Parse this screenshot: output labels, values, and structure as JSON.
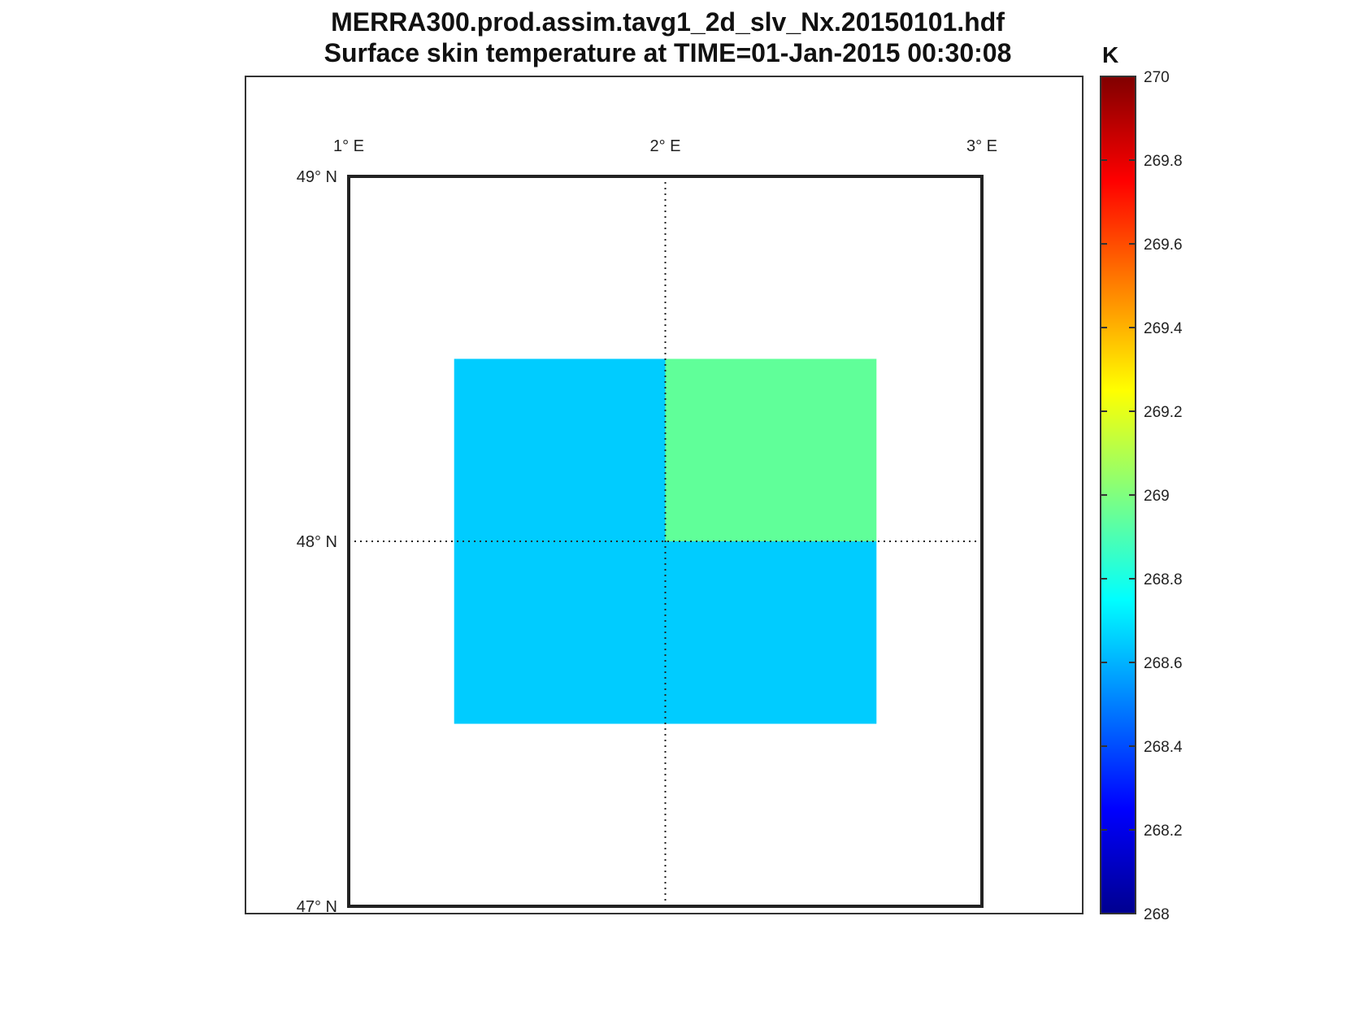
{
  "figure": {
    "title_line1": "MERRA300.prod.assim.tavg1_2d_slv_Nx.20150101.hdf",
    "title_line2": "Surface skin temperature at TIME=01-Jan-2015 00:30:08"
  },
  "map": {
    "lon_labels": [
      "1° E",
      "2° E",
      "3° E"
    ],
    "lat_labels": [
      "49° N",
      "48° N",
      "47° N"
    ],
    "lon_range": [
      1,
      3
    ],
    "lat_range": [
      47,
      49
    ],
    "graticule": "dotted"
  },
  "colorbar": {
    "unit": "K",
    "colormap": "jet",
    "range": [
      268,
      270
    ],
    "ticks": [
      "270",
      "269.8",
      "269.6",
      "269.4",
      "269.2",
      "269",
      "268.8",
      "268.6",
      "268.4",
      "268.2",
      "268"
    ]
  },
  "chart_data": {
    "type": "heatmap",
    "title": "Surface skin temperature at TIME=01-Jan-2015 00:30:08",
    "zlabel": "K",
    "zlim": [
      268,
      270
    ],
    "cells": [
      {
        "lon": [
          1.333,
          2.0
        ],
        "lat": [
          48.0,
          48.5
        ],
        "value": 268.65,
        "color": "#00ccff"
      },
      {
        "lon": [
          2.0,
          2.667
        ],
        "lat": [
          48.0,
          48.5
        ],
        "value": 268.92,
        "color": "#60ff99"
      },
      {
        "lon": [
          1.333,
          2.0
        ],
        "lat": [
          47.5,
          48.0
        ],
        "value": 268.65,
        "color": "#00ccff"
      },
      {
        "lon": [
          2.0,
          2.667
        ],
        "lat": [
          47.5,
          48.0
        ],
        "value": 268.65,
        "color": "#00ccff"
      }
    ]
  }
}
